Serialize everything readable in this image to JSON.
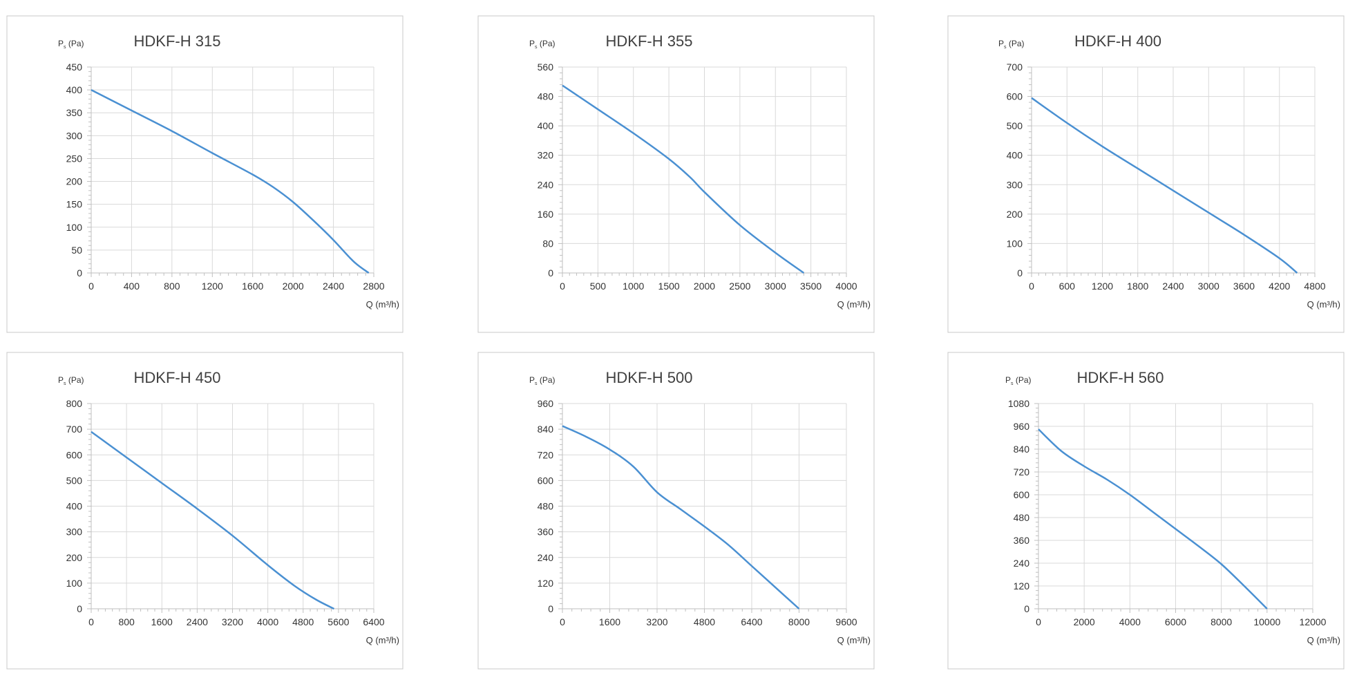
{
  "colors": {
    "line": "#4a90d2",
    "grid": "#d9d9d9",
    "frame": "#c8c8c8",
    "text": "#333333"
  },
  "chart_data": [
    {
      "type": "line",
      "title": "HDKF-H 315",
      "ylabel_main": "P",
      "ylabel_sub": "s",
      "ylabel_unit": "(Pa)",
      "xlabel": "Q (m³/h)",
      "xlim": [
        0,
        2800
      ],
      "ylim": [
        0,
        450
      ],
      "xticks": [
        0,
        400,
        800,
        1200,
        1600,
        2000,
        2400,
        2800
      ],
      "yticks": [
        0,
        50,
        100,
        150,
        200,
        250,
        300,
        350,
        400,
        450
      ],
      "grid": true,
      "series": [
        {
          "x": [
            0,
            400,
            800,
            1200,
            1600,
            1800,
            2000,
            2200,
            2400,
            2600,
            2750
          ],
          "y": [
            400,
            355,
            310,
            262,
            215,
            188,
            155,
            115,
            72,
            25,
            0
          ]
        }
      ]
    },
    {
      "type": "line",
      "title": "HDKF-H 355",
      "ylabel_main": "P",
      "ylabel_sub": "s",
      "ylabel_unit": "(Pa)",
      "xlabel": "Q (m³/h)",
      "xlim": [
        0,
        4000
      ],
      "ylim": [
        0,
        560
      ],
      "xticks": [
        0,
        500,
        1000,
        1500,
        2000,
        2500,
        3000,
        3500,
        4000
      ],
      "yticks": [
        0,
        80,
        160,
        240,
        320,
        400,
        480,
        560
      ],
      "grid": true,
      "series": [
        {
          "x": [
            0,
            500,
            1000,
            1500,
            1800,
            2000,
            2500,
            3000,
            3400
          ],
          "y": [
            510,
            445,
            380,
            310,
            260,
            220,
            130,
            55,
            0
          ]
        }
      ]
    },
    {
      "type": "line",
      "title": "HDKF-H 400",
      "ylabel_main": "P",
      "ylabel_sub": "s",
      "ylabel_unit": "(Pa)",
      "xlabel": "Q (m³/h)",
      "xlim": [
        0,
        4800
      ],
      "ylim": [
        0,
        700
      ],
      "xticks": [
        0,
        600,
        1200,
        1800,
        2400,
        3000,
        3600,
        4200,
        4800
      ],
      "yticks": [
        0,
        100,
        200,
        300,
        400,
        500,
        600,
        700
      ],
      "grid": true,
      "series": [
        {
          "x": [
            0,
            600,
            1200,
            1800,
            2400,
            3000,
            3600,
            4200,
            4500
          ],
          "y": [
            595,
            510,
            430,
            355,
            280,
            205,
            130,
            50,
            0
          ]
        }
      ]
    },
    {
      "type": "line",
      "title": "HDKF-H 450",
      "ylabel_main": "P",
      "ylabel_sub": "s",
      "ylabel_unit": "(Pa)",
      "xlabel": "Q (m³/h)",
      "xlim": [
        0,
        6400
      ],
      "ylim": [
        0,
        800
      ],
      "xticks": [
        0,
        800,
        1600,
        2400,
        3200,
        4000,
        4800,
        5600,
        6400
      ],
      "yticks": [
        0,
        100,
        200,
        300,
        400,
        500,
        600,
        700,
        800
      ],
      "grid": true,
      "series": [
        {
          "x": [
            0,
            800,
            1600,
            2400,
            3200,
            4000,
            4600,
            5100,
            5500
          ],
          "y": [
            690,
            590,
            490,
            390,
            285,
            170,
            90,
            35,
            0
          ]
        }
      ]
    },
    {
      "type": "line",
      "title": "HDKF-H 500",
      "ylabel_main": "P",
      "ylabel_sub": "s",
      "ylabel_unit": "(Pa)",
      "xlabel": "Q (m³/h)",
      "xlim": [
        0,
        9600
      ],
      "ylim": [
        0,
        960
      ],
      "xticks": [
        0,
        1600,
        3200,
        4800,
        6400,
        8000,
        9600
      ],
      "yticks": [
        0,
        120,
        240,
        360,
        480,
        600,
        720,
        840,
        960
      ],
      "grid": true,
      "series": [
        {
          "x": [
            0,
            800,
            1600,
            2400,
            3200,
            4000,
            4800,
            5600,
            6400,
            7200,
            8000
          ],
          "y": [
            855,
            805,
            745,
            665,
            545,
            465,
            385,
            300,
            200,
            100,
            0
          ]
        }
      ]
    },
    {
      "type": "line",
      "title": "HDKF-H 560",
      "ylabel_main": "P",
      "ylabel_sub": "s",
      "ylabel_unit": "(Pa)",
      "xlabel": "Q (m³/h)",
      "xlim": [
        0,
        12000
      ],
      "ylim": [
        0,
        1080
      ],
      "xticks": [
        0,
        2000,
        4000,
        6000,
        8000,
        10000,
        12000
      ],
      "yticks": [
        0,
        120,
        240,
        360,
        480,
        600,
        720,
        840,
        960,
        1080
      ],
      "grid": true,
      "series": [
        {
          "x": [
            0,
            1000,
            2000,
            3000,
            4000,
            5000,
            6000,
            7000,
            8000,
            9000,
            10000
          ],
          "y": [
            945,
            830,
            750,
            680,
            600,
            510,
            420,
            330,
            235,
            120,
            0
          ]
        }
      ]
    }
  ]
}
